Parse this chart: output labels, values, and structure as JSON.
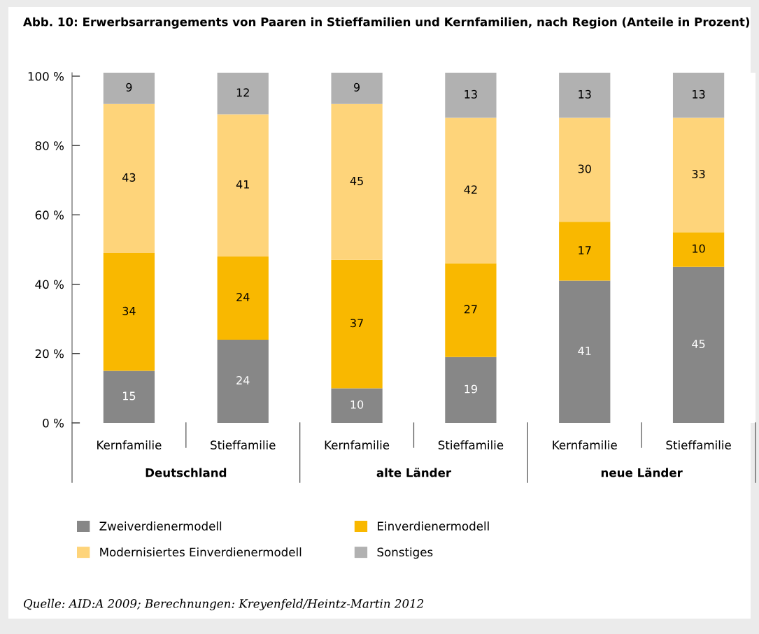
{
  "chart_data": {
    "type": "bar",
    "stacked": true,
    "title": "Abb. 10: Erwerbsarrangements von Paaren in Stieffamilien und Kernfamilien, nach Region (Anteile in Prozent)",
    "categories": [
      "Kernfamilie",
      "Stieffamilie",
      "Kernfamilie",
      "Stieffamilie",
      "Kernfamilie",
      "Stieffamilie"
    ],
    "series": [
      {
        "name": "Zweiverdienermodell",
        "color": "#878787",
        "values": [
          15,
          24,
          10,
          19,
          41,
          45
        ]
      },
      {
        "name": "Einverdienermodell",
        "color": "#f9b800",
        "values": [
          34,
          24,
          37,
          27,
          17,
          10
        ]
      },
      {
        "name": "Modernisiertes Einverdienermodell",
        "color": "#fed47a",
        "values": [
          43,
          41,
          45,
          42,
          30,
          33
        ]
      },
      {
        "name": "Sonstiges",
        "color": "#b1b1b1",
        "values": [
          9,
          12,
          9,
          13,
          13,
          13
        ]
      }
    ],
    "ylim": [
      0,
      101
    ],
    "yticks": [
      {
        "value": 0,
        "label": "0 %"
      },
      {
        "value": 20,
        "label": "20 %"
      },
      {
        "value": 40,
        "label": "40 %"
      },
      {
        "value": 60,
        "label": "60 %"
      },
      {
        "value": 80,
        "label": "80 %"
      },
      {
        "value": 100,
        "label": "100 %"
      }
    ],
    "data_labels": true,
    "grid": false,
    "legend": "bottom",
    "annotations": [
      "Deutschland",
      "alte Länder",
      "neue Länder",
      "Quelle: AID:A 2009; Berechnungen: Kreyenfeld/Heintz-Martin 2012"
    ]
  }
}
